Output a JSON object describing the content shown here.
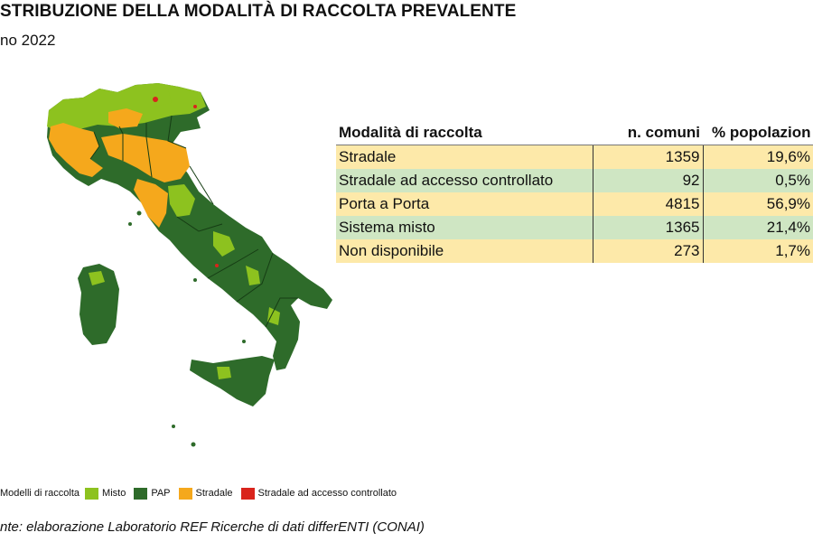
{
  "header": {
    "title": "STRIBUZIONE DELLA MODALITÀ DI RACCOLTA PREVALENTE",
    "subtitle": "no 2022"
  },
  "chart_data": {
    "type": "table",
    "columns": [
      "Modalità di raccolta",
      "n. comuni",
      "% popolazion"
    ],
    "rows": [
      {
        "label": "Stradale",
        "comuni": "1359",
        "pct": "19,6%"
      },
      {
        "label": "Stradale ad accesso controllato",
        "comuni": "92",
        "pct": "0,5%"
      },
      {
        "label": "Porta a Porta",
        "comuni": "4815",
        "pct": "56,9%"
      },
      {
        "label": "Sistema misto",
        "comuni": "1365",
        "pct": "21,4%"
      },
      {
        "label": "Non disponibile",
        "comuni": "273",
        "pct": "1,7%"
      }
    ]
  },
  "map": {
    "legend_title": "Modelli di raccolta",
    "legend": [
      {
        "label": "Misto",
        "color": "#8dc21f"
      },
      {
        "label": "PAP",
        "color": "#2e6b2a"
      },
      {
        "label": "Stradale",
        "color": "#f5a81c"
      },
      {
        "label": "Stradale ad accesso controllato",
        "color": "#d9241c"
      }
    ]
  },
  "footer": {
    "source": "nte: elaborazione Laboratorio REF Ricerche di dati differENTI (CONAI)"
  }
}
